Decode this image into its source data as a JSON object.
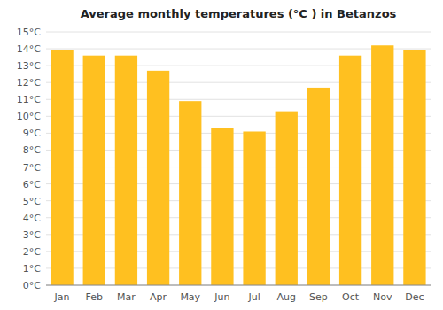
{
  "chart_data": {
    "type": "bar",
    "title": "Average monthly temperatures (°C ) in Betanzos",
    "categories": [
      "Jan",
      "Feb",
      "Mar",
      "Apr",
      "May",
      "Jun",
      "Jul",
      "Aug",
      "Sep",
      "Oct",
      "Nov",
      "Dec"
    ],
    "values": [
      13.9,
      13.6,
      13.6,
      12.7,
      10.9,
      9.3,
      9.1,
      10.3,
      11.7,
      13.6,
      14.2,
      13.9
    ],
    "color": "#FFC020",
    "ylim": [
      0,
      15
    ],
    "yticks": [
      {
        "value": 0,
        "label": "0°C"
      },
      {
        "value": 1,
        "label": "1°C"
      },
      {
        "value": 2,
        "label": "2°C"
      },
      {
        "value": 3,
        "label": "3°C"
      },
      {
        "value": 4,
        "label": "4°C"
      },
      {
        "value": 5,
        "label": "5°C"
      },
      {
        "value": 6,
        "label": "6°C"
      },
      {
        "value": 7,
        "label": "7°C"
      },
      {
        "value": 8,
        "label": "8°C"
      },
      {
        "value": 9,
        "label": "9°C"
      },
      {
        "value": 10,
        "label": "10°C"
      },
      {
        "value": 11,
        "label": "11°C"
      },
      {
        "value": 12,
        "label": "12°C"
      },
      {
        "value": 13,
        "label": "13°C"
      },
      {
        "value": 14,
        "label": "14°C"
      },
      {
        "value": 15,
        "label": "15°C"
      }
    ],
    "grid": true
  }
}
